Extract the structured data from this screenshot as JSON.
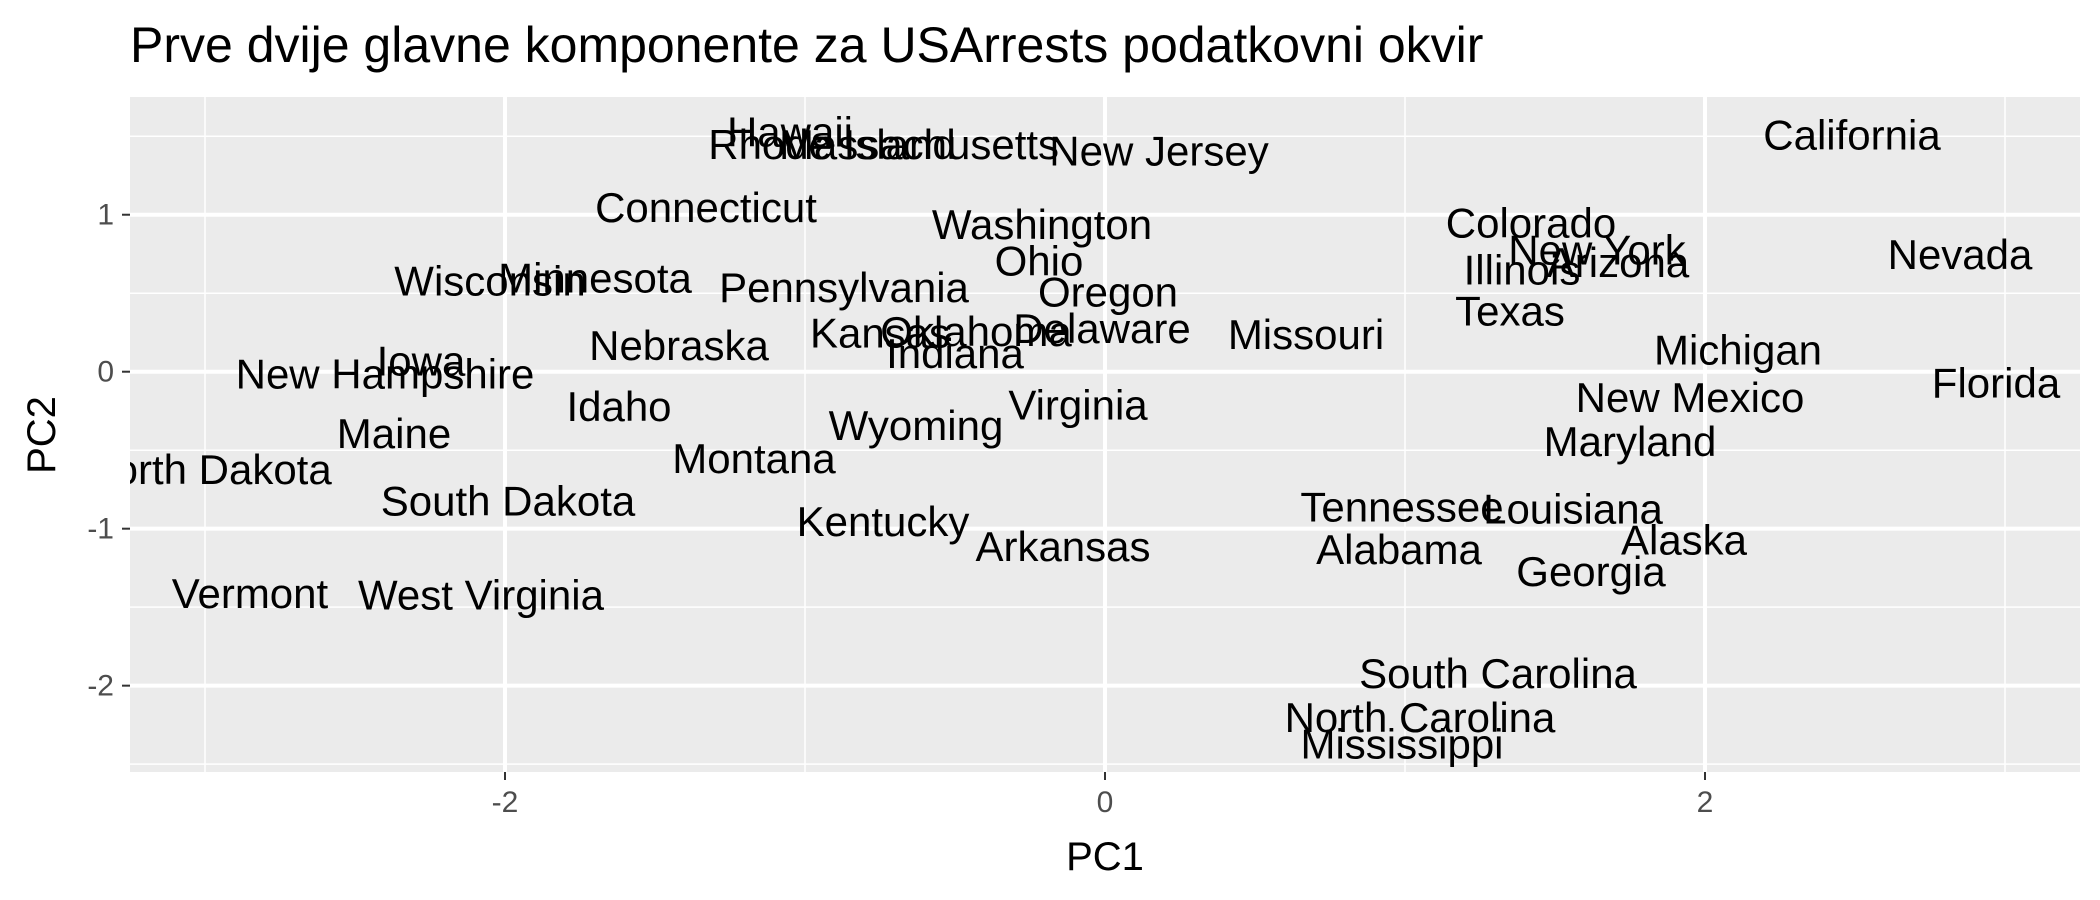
{
  "chart_data": {
    "type": "scatter",
    "title": "Prve dvije glavne komponente za USArrests podatkovni okvir",
    "xlabel": "PC1",
    "ylabel": "PC2",
    "xlim": [
      -3.25,
      3.25
    ],
    "ylim": [
      -2.55,
      1.75
    ],
    "xticks": [
      -2,
      0,
      2
    ],
    "yticks": [
      -2,
      -1,
      0,
      1
    ],
    "grid": true,
    "background": "#ebebeb",
    "points": [
      {
        "label": "Hawaii",
        "x": -1.05,
        "y": 1.53
      },
      {
        "label": "Rhode Island",
        "x": -0.91,
        "y": 1.45
      },
      {
        "label": "Massachusetts",
        "x": -0.62,
        "y": 1.45
      },
      {
        "label": "New Jersey",
        "x": 0.18,
        "y": 1.41
      },
      {
        "label": "California",
        "x": 2.49,
        "y": 1.51
      },
      {
        "label": "Connecticut",
        "x": -1.33,
        "y": 1.05
      },
      {
        "label": "Washington",
        "x": -0.21,
        "y": 0.94
      },
      {
        "label": "Colorado",
        "x": 1.42,
        "y": 0.95
      },
      {
        "label": "New York",
        "x": 1.64,
        "y": 0.78
      },
      {
        "label": "Arizona",
        "x": 1.71,
        "y": 0.7
      },
      {
        "label": "Illinois",
        "x": 1.39,
        "y": 0.65
      },
      {
        "label": "Nevada",
        "x": 2.85,
        "y": 0.75
      },
      {
        "label": "Ohio",
        "x": -0.22,
        "y": 0.71
      },
      {
        "label": "Wisconsin",
        "x": -2.05,
        "y": 0.58
      },
      {
        "label": "Minnesota",
        "x": -1.7,
        "y": 0.6
      },
      {
        "label": "Pennsylvania",
        "x": -0.87,
        "y": 0.54
      },
      {
        "label": "Oregon",
        "x": 0.01,
        "y": 0.51
      },
      {
        "label": "Texas",
        "x": 1.35,
        "y": 0.39
      },
      {
        "label": "Kansas",
        "x": -0.75,
        "y": 0.25
      },
      {
        "label": "Oklahoma",
        "x": -0.43,
        "y": 0.26
      },
      {
        "label": "Delaware",
        "x": -0.01,
        "y": 0.28
      },
      {
        "label": "Missouri",
        "x": 0.67,
        "y": 0.24
      },
      {
        "label": "Nebraska",
        "x": -1.42,
        "y": 0.17
      },
      {
        "label": "Indiana",
        "x": -0.5,
        "y": 0.12
      },
      {
        "label": "Michigan",
        "x": 2.11,
        "y": 0.14
      },
      {
        "label": "Iowa",
        "x": -2.28,
        "y": 0.07
      },
      {
        "label": "New Hampshire",
        "x": -2.4,
        "y": -0.01
      },
      {
        "label": "Florida",
        "x": 2.97,
        "y": -0.07
      },
      {
        "label": "Idaho",
        "x": -1.62,
        "y": -0.22
      },
      {
        "label": "Virginia",
        "x": -0.09,
        "y": -0.21
      },
      {
        "label": "New Mexico",
        "x": 1.95,
        "y": -0.16
      },
      {
        "label": "Wyoming",
        "x": -0.63,
        "y": -0.34
      },
      {
        "label": "Maine",
        "x": -2.37,
        "y": -0.39
      },
      {
        "label": "Maryland",
        "x": 1.75,
        "y": -0.44
      },
      {
        "label": "Montana",
        "x": -1.17,
        "y": -0.55
      },
      {
        "label": "North Dakota",
        "x": -2.99,
        "y": -0.62
      },
      {
        "label": "South Dakota",
        "x": -1.99,
        "y": -0.82
      },
      {
        "label": "Tennessee",
        "x": 0.99,
        "y": -0.86
      },
      {
        "label": "Louisiana",
        "x": 1.56,
        "y": -0.87
      },
      {
        "label": "Kentucky",
        "x": -0.74,
        "y": -0.95
      },
      {
        "label": "Alaska",
        "x": 1.93,
        "y": -1.07
      },
      {
        "label": "Arkansas",
        "x": -0.14,
        "y": -1.11
      },
      {
        "label": "Alabama",
        "x": 0.98,
        "y": -1.13
      },
      {
        "label": "Georgia",
        "x": 1.62,
        "y": -1.27
      },
      {
        "label": "Vermont",
        "x": -2.85,
        "y": -1.41
      },
      {
        "label": "West Virginia",
        "x": -2.08,
        "y": -1.42
      },
      {
        "label": "South Carolina",
        "x": 1.31,
        "y": -1.92
      },
      {
        "label": "North Carolina",
        "x": 1.05,
        "y": -2.2
      },
      {
        "label": "Mississippi",
        "x": 0.99,
        "y": -2.37
      }
    ]
  }
}
